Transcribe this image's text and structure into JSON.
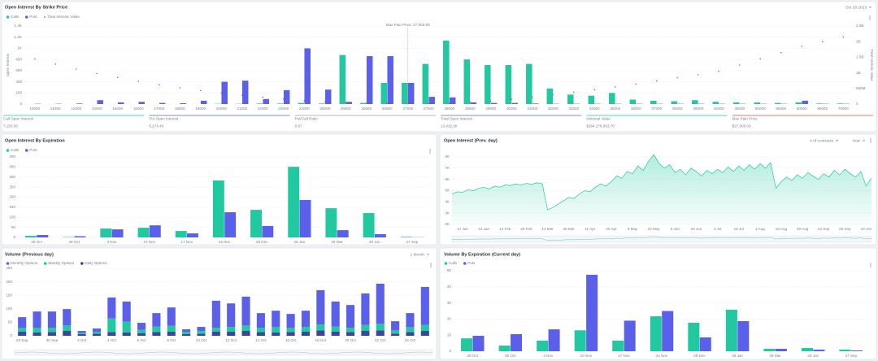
{
  "chart_data": [
    {
      "type": "bar",
      "title": "Open Interest By Strike Price",
      "date": "Oct 28 2023",
      "annotation": "Max Pain Price: 27,000.00",
      "max_pain_strike": 27000,
      "ylabel": "Open Interest",
      "y2label": "Total Intrinsic Value",
      "categories": [
        10000,
        11000,
        12000,
        14000,
        15000,
        16000,
        17000,
        18000,
        19000,
        20000,
        21000,
        22000,
        23000,
        24000,
        25000,
        25500,
        26000,
        26500,
        27000,
        27500,
        28000,
        28500,
        29000,
        30000,
        31000,
        32000,
        33000,
        34000,
        35000,
        36000,
        37000,
        38000,
        39000,
        40000,
        45000,
        50000,
        55000,
        60000,
        65000,
        70000
      ],
      "series": [
        {
          "name": "Calls",
          "color": "#22c9a0",
          "values": [
            0,
            0,
            0,
            0,
            0,
            0,
            0,
            0,
            0,
            5,
            5,
            10,
            10,
            20,
            10,
            880,
            20,
            380,
            380,
            720,
            1140,
            800,
            700,
            700,
            720,
            280,
            170,
            150,
            200,
            80,
            60,
            50,
            70,
            40,
            30,
            30,
            20,
            30,
            10,
            10
          ]
        },
        {
          "name": "Puts",
          "color": "#5a60ea",
          "values": [
            5,
            5,
            10,
            70,
            30,
            40,
            20,
            15,
            60,
            400,
            420,
            90,
            250,
            1000,
            260,
            40,
            860,
            860,
            380,
            130,
            120,
            30,
            20,
            20,
            10,
            5,
            5,
            5,
            5,
            5,
            5,
            5,
            5,
            5,
            5,
            5,
            5,
            60,
            5,
            5
          ]
        },
        {
          "name": "Total Intrinsic Value",
          "color": "#e5484d",
          "type": "scatter",
          "axis": "y2",
          "values": [
            1450000000,
            1280000000,
            1120000000,
            980000000,
            850000000,
            730000000,
            620000000,
            520000000,
            430000000,
            350000000,
            280000000,
            220000000,
            160000000,
            110000000,
            70000000,
            50000000,
            30000000,
            15000000,
            10000000,
            12000000,
            30000000,
            60000000,
            90000000,
            150000000,
            220000000,
            300000000,
            380000000,
            460000000,
            550000000,
            640000000,
            740000000,
            840000000,
            940000000,
            1050000000,
            1250000000,
            1450000000,
            1650000000,
            1850000000,
            2000000000,
            2150000000
          ]
        }
      ],
      "ylim": [
        0,
        1400
      ],
      "yticks": [
        0,
        200,
        400,
        600,
        800,
        {
          "value": 1000,
          "label": "1K"
        },
        {
          "value": 1200,
          "label": "1.2K"
        },
        {
          "value": 1400,
          "label": "1.4K"
        }
      ],
      "y2lim": [
        0,
        2500000000
      ],
      "y2ticks": [
        0,
        {
          "value": 500000000,
          "label": "500M"
        },
        {
          "value": 1000000000,
          "label": "1B"
        },
        {
          "value": 1500000000,
          "label": "1.5B"
        },
        {
          "value": 2000000000,
          "label": "2B"
        },
        {
          "value": 2500000000,
          "label": "2.5B"
        }
      ],
      "grid": true,
      "legend": "top-left",
      "stats": [
        {
          "label": "Call Open Interest",
          "value": "7,158.50",
          "color": "#22c9a0"
        },
        {
          "label": "Put Open Interest",
          "value": "6,274.40",
          "color": "#5a60ea"
        },
        {
          "label": "Put/Call Ratio",
          "value": "0.87",
          "color": "#9aa0aa"
        },
        {
          "label": "Total Open Interest",
          "value": "13,432.90",
          "color": "#5a60ea"
        },
        {
          "label": "Notional Value",
          "value": "$364,278,993.70",
          "color": "#22c9a0"
        },
        {
          "label": "Max Pain Price",
          "value": "$27,000.00",
          "color": "#e5484d"
        }
      ]
    },
    {
      "type": "bar",
      "title": "Open Interest By Expiration",
      "categories": [
        "29 Oct",
        "30 Oct",
        "3 Nov",
        "10 Nov",
        "17 Nov",
        "24 Nov",
        "29 Dec",
        "26 Jan",
        "29 Mar",
        "28 Jun",
        "27 Sep"
      ],
      "series": [
        {
          "name": "Calls",
          "color": "#22c9a0",
          "values": [
            8,
            2,
            44,
            48,
            32,
            283,
            137,
            351,
            145,
            121,
            3
          ]
        },
        {
          "name": "Puts",
          "color": "#5a60ea",
          "values": [
            12,
            6,
            40,
            60,
            20,
            125,
            57,
            186,
            36,
            16,
            1
          ]
        }
      ],
      "ylim": [
        0,
        400
      ],
      "yticks": [
        0,
        50,
        100,
        150,
        200,
        250,
        300,
        350,
        400
      ],
      "grid": true,
      "legend": "top-left"
    },
    {
      "type": "area",
      "title": "Open Interest (Prev. day)",
      "units_selector": "# of contracts",
      "range_selector": "Year",
      "categories": [
        null,
        null,
        "17 Jan",
        null,
        null,
        null,
        "31 Jan",
        null,
        null,
        null,
        "14 Feb",
        null,
        null,
        null,
        "28 Feb",
        null,
        null,
        null,
        "14 Mar",
        null,
        null,
        null,
        "28 Mar",
        null,
        null,
        null,
        "11 Apr",
        null,
        null,
        null,
        "25 Apr",
        null,
        null,
        null,
        "9 May",
        null,
        null,
        null,
        "23 May",
        null,
        null,
        null,
        "6 Jun",
        null,
        null,
        null,
        "20 Jun",
        null,
        null,
        null,
        "4 Jul",
        null,
        null,
        null,
        "18 Jul",
        null,
        null,
        null,
        "1 Aug",
        null,
        null,
        null,
        "15 Aug",
        null,
        null,
        null,
        "29 Aug",
        null,
        null,
        null,
        "12 Sep",
        null,
        null,
        null,
        "26 Sep",
        null,
        null,
        null,
        "10 Oct",
        null
      ],
      "values": [
        4700,
        4900,
        4850,
        5100,
        5000,
        5200,
        5300,
        5150,
        5400,
        5300,
        5500,
        5450,
        5600,
        5500,
        5650,
        5550,
        5700,
        5600,
        3300,
        3500,
        3800,
        4100,
        4400,
        4300,
        4700,
        5000,
        4900,
        5300,
        5600,
        5400,
        5800,
        6300,
        6100,
        6700,
        6500,
        7200,
        6800,
        7600,
        8200,
        7400,
        7000,
        7300,
        6600,
        6900,
        6400,
        7000,
        6700,
        6300,
        6800,
        6500,
        6900,
        6600,
        7100,
        6700,
        7200,
        6800,
        7300,
        6900,
        7400,
        7000,
        7500,
        5200,
        5800,
        6200,
        5900,
        6400,
        6100,
        6600,
        6300,
        6000,
        6500,
        6200,
        6800,
        6400,
        6900,
        6500,
        6200,
        6700,
        5400,
        6100
      ],
      "color": "#22c9a0",
      "ylim": [
        2000,
        8500
      ],
      "yticks": [
        {
          "value": 2000,
          "label": "2K"
        },
        {
          "value": 3000,
          "label": "3K"
        },
        {
          "value": 4000,
          "label": "4K"
        },
        {
          "value": 5000,
          "label": "5K"
        },
        {
          "value": 6000,
          "label": "6K"
        },
        {
          "value": 7000,
          "label": "7K"
        },
        {
          "value": 8000,
          "label": "8K"
        }
      ],
      "grid": true
    },
    {
      "type": "bar",
      "stacked": true,
      "title": "Volume (Previous day)",
      "range_selector": "1 Month",
      "categories": [
        "28 Sep",
        null,
        "30 Sep",
        null,
        "2 Oct",
        null,
        "4 Oct",
        null,
        "6 Oct",
        null,
        "8 Oct",
        null,
        "10 Oct",
        null,
        "12 Oct",
        null,
        "14 Oct",
        null,
        "16 Oct",
        null,
        "18 Oct",
        null,
        "20 Oct",
        null,
        "22 Oct",
        null,
        "24 Oct",
        null
      ],
      "series": [
        {
          "name": "Monthly Options",
          "color": "#5a60ea",
          "values": [
            40,
            60,
            60,
            60,
            7,
            12,
            78,
            75,
            26,
            50,
            68,
            10,
            15,
            100,
            87,
            107,
            54,
            61,
            52,
            60,
            127,
            93,
            84,
            117,
            148,
            34,
            52,
            141
          ]
        },
        {
          "name": "Weekly Options",
          "color": "#22c9a0",
          "values": [
            14,
            18,
            16,
            21,
            5,
            7,
            50,
            40,
            12,
            20,
            22,
            8,
            10,
            14,
            18,
            20,
            16,
            20,
            15,
            18,
            22,
            18,
            16,
            22,
            25,
            12,
            18,
            22
          ]
        },
        {
          "name": "Daily Options",
          "color": "#3a4699",
          "values": [
            15,
            12,
            14,
            18,
            6,
            8,
            14,
            12,
            10,
            14,
            15,
            6,
            8,
            16,
            15,
            18,
            14,
            12,
            14,
            15,
            20,
            16,
            14,
            18,
            20,
            8,
            14,
            18
          ]
        }
      ],
      "ylim": [
        0,
        250
      ],
      "yticks": [
        0,
        50,
        100,
        150,
        200,
        250
      ],
      "grid": true,
      "legend": "top-left"
    },
    {
      "type": "bar",
      "title": "Volume By Expiration (Current day)",
      "categories": [
        "29 Oct",
        "30 Oct",
        "3 Nov",
        "10 Nov",
        "17 Nov",
        "24 Nov",
        "29 Dec",
        "26 Jan",
        "29 Mar",
        "28 Jun",
        "27 Sep"
      ],
      "series": [
        {
          "name": "Calls",
          "color": "#22c9a0",
          "values": [
            8,
            3.5,
            6.6,
            13,
            6.6,
            21.7,
            17.7,
            25.8,
            1.5,
            2,
            1
          ]
        },
        {
          "name": "Puts",
          "color": "#5a60ea",
          "values": [
            9.6,
            10.6,
            13.6,
            47.5,
            19,
            25,
            8.6,
            18.7,
            1.5,
            1,
            0.5
          ]
        }
      ],
      "ylim": [
        0,
        50
      ],
      "yticks": [
        0,
        10,
        20,
        30,
        40,
        50
      ],
      "grid": true,
      "legend": "top-left"
    }
  ]
}
